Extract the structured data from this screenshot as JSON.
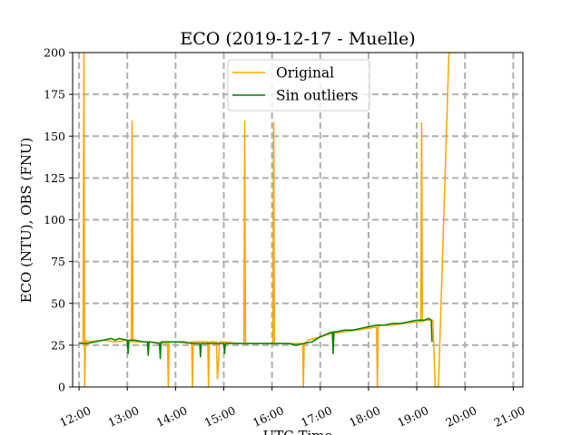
{
  "chart_data": {
    "type": "line",
    "title": "ECO (2019-12-17 - Muelle)",
    "xlabel": "UTC Time",
    "ylabel": "ECO (NTU), OBS (FNU)",
    "xlim": [
      "11:52",
      "21:12"
    ],
    "ylim": [
      0,
      200
    ],
    "xticks": [
      "12:00",
      "13:00",
      "14:00",
      "15:00",
      "16:00",
      "17:00",
      "18:00",
      "19:00",
      "20:00",
      "21:00"
    ],
    "yticks": [
      0,
      25,
      50,
      75,
      100,
      125,
      150,
      175,
      200
    ],
    "grid": true,
    "legend_position": "top-center",
    "series": [
      {
        "name": "Original",
        "color": "#ffa500",
        "x": [
          "12:00",
          "12:05",
          "12:06",
          "12:07",
          "12:08",
          "12:09",
          "12:10",
          "12:30",
          "12:45",
          "13:00",
          "13:05",
          "13:06",
          "13:07",
          "13:08",
          "13:30",
          "13:45",
          "13:50",
          "13:51",
          "13:52",
          "13:55",
          "14:00",
          "14:15",
          "14:20",
          "14:21",
          "14:22",
          "14:25",
          "14:40",
          "14:41",
          "14:42",
          "14:45",
          "14:50",
          "14:51",
          "14:52",
          "14:55",
          "14:56",
          "14:57",
          "15:00",
          "15:20",
          "15:25",
          "15:26",
          "15:27",
          "15:30",
          "15:55",
          "16:01",
          "16:02",
          "16:03",
          "16:05",
          "16:30",
          "16:38",
          "16:39",
          "16:40",
          "16:45",
          "17:00",
          "17:15",
          "17:30",
          "17:45",
          "18:00",
          "18:10",
          "18:11",
          "18:12",
          "18:15",
          "18:30",
          "18:45",
          "19:00",
          "19:05",
          "19:06",
          "19:07",
          "19:10",
          "19:15",
          "19:20",
          "19:23",
          "19:27",
          "19:40",
          "19:45",
          "19:50"
        ],
        "values": [
          26,
          27,
          200,
          0,
          27,
          28,
          27,
          28,
          27,
          28,
          27,
          159,
          27,
          27,
          27,
          26,
          26,
          0,
          27,
          27,
          27,
          26,
          27,
          0,
          27,
          27,
          27,
          0,
          27,
          27,
          27,
          27,
          5,
          27,
          27,
          27,
          27,
          26,
          26,
          159,
          26,
          26,
          26,
          26,
          158,
          26,
          26,
          26,
          26,
          0,
          26,
          28,
          30,
          32,
          33,
          34,
          35,
          36,
          0,
          36,
          37,
          37,
          38,
          39,
          39,
          158,
          39,
          40,
          40,
          40,
          0,
          0,
          200,
          200,
          200
        ],
        "lw": 1.5
      },
      {
        "name": "Sin outliers",
        "color": "#008000",
        "x": [
          "12:00",
          "12:10",
          "12:20",
          "12:30",
          "12:40",
          "12:45",
          "12:50",
          "13:00",
          "13:01",
          "13:02",
          "13:10",
          "13:20",
          "13:25",
          "13:26",
          "13:27",
          "13:40",
          "13:41",
          "13:42",
          "13:50",
          "14:00",
          "14:10",
          "14:20",
          "14:30",
          "14:31",
          "14:32",
          "14:40",
          "14:50",
          "15:00",
          "15:01",
          "15:02",
          "15:10",
          "15:20",
          "15:30",
          "15:40",
          "15:50",
          "16:00",
          "16:10",
          "16:20",
          "16:30",
          "16:40",
          "16:50",
          "17:00",
          "17:10",
          "17:15",
          "17:16",
          "17:17",
          "17:20",
          "17:30",
          "17:40",
          "17:50",
          "18:00",
          "18:10",
          "18:20",
          "18:30",
          "18:40",
          "18:50",
          "19:00",
          "19:10",
          "19:15",
          "19:18",
          "19:19"
        ],
        "values": [
          26,
          26,
          27,
          28,
          29,
          28,
          29,
          28,
          20,
          28,
          28,
          27,
          27,
          19,
          27,
          26,
          17,
          27,
          27,
          27,
          27,
          26,
          26,
          18,
          26,
          26,
          26,
          26,
          20,
          26,
          26,
          26,
          26,
          26,
          26,
          26,
          26,
          26,
          25,
          26,
          27,
          30,
          32,
          33,
          20,
          33,
          33,
          34,
          34,
          35,
          36,
          37,
          37,
          38,
          38,
          39,
          40,
          40,
          41,
          40,
          27
        ],
        "lw": 1.5
      }
    ]
  }
}
